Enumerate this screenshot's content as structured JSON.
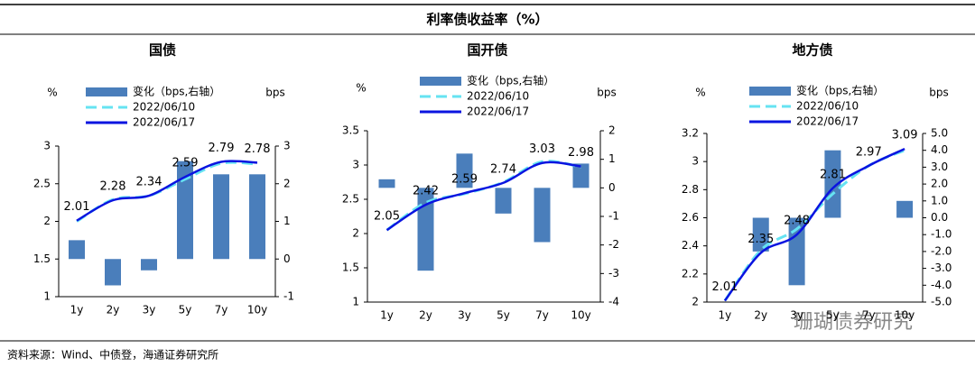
{
  "title": "利率债收益率（%）",
  "source": "资料来源：Wind、中债登，海通证券研究所",
  "watermark": "珊瑚债券研究",
  "chart_data": [
    {
      "type": "bar-line",
      "title": "国债",
      "y_label": "%",
      "y2_label": "bps",
      "categories": [
        "1y",
        "2y",
        "3y",
        "5y",
        "7y",
        "10y"
      ],
      "ylim": [
        1,
        3
      ],
      "yticks": [
        1,
        1.5,
        2,
        2.5,
        3
      ],
      "y2lim": [
        -1,
        3
      ],
      "y2ticks": [
        -1,
        0,
        1,
        2,
        3
      ],
      "series": [
        {
          "name": "变化（bps,右轴）",
          "type": "bar",
          "axis": "y2",
          "color": "#4a7ebb",
          "values": [
            0.5,
            -0.7,
            -0.3,
            2.6,
            2.25,
            2.25
          ]
        },
        {
          "name": "2022/06/10",
          "type": "line",
          "dashed": true,
          "color": "#66e3f2",
          "values": [
            2.0,
            2.29,
            2.34,
            2.56,
            2.77,
            2.76
          ]
        },
        {
          "name": "2022/06/17",
          "type": "line",
          "labels": true,
          "color": "#0a14e0",
          "values": [
            2.01,
            2.28,
            2.34,
            2.59,
            2.79,
            2.78
          ]
        }
      ]
    },
    {
      "type": "bar-line",
      "title": "国开债",
      "y_label": "%",
      "y2_label": "bps",
      "categories": [
        "1y",
        "2y",
        "3y",
        "5y",
        "7y",
        "10y"
      ],
      "ylim": [
        1,
        3.5
      ],
      "yticks": [
        1,
        1.5,
        2,
        2.5,
        3,
        3.5
      ],
      "y2lim": [
        -4,
        2
      ],
      "y2ticks": [
        -4,
        -3,
        -2,
        -1,
        0,
        1,
        2
      ],
      "series": [
        {
          "name": "变化（bps,右轴）",
          "type": "bar",
          "axis": "y2",
          "color": "#4a7ebb",
          "values": [
            0.3,
            -2.9,
            1.2,
            -0.9,
            -1.9,
            0.85
          ]
        },
        {
          "name": "2022/06/10",
          "type": "line",
          "dashed": true,
          "color": "#66e3f2",
          "values": [
            2.05,
            2.45,
            2.58,
            2.75,
            3.05,
            2.97
          ]
        },
        {
          "name": "2022/06/17",
          "type": "line",
          "labels": true,
          "color": "#0a14e0",
          "values": [
            2.05,
            2.42,
            2.59,
            2.74,
            3.03,
            2.98
          ]
        }
      ]
    },
    {
      "type": "bar-line",
      "title": "地方债",
      "y_label": "%",
      "y2_label": "bps",
      "categories": [
        "1y",
        "2y",
        "3y",
        "5y",
        "7y",
        "10y"
      ],
      "ylim": [
        2,
        3.2
      ],
      "yticks": [
        2,
        2.2,
        2.4,
        2.6,
        2.8,
        3,
        3.2
      ],
      "y2lim": [
        -5,
        5
      ],
      "y2ticks": [
        {
          "value": -5,
          "label": "-5.0"
        },
        {
          "value": -4,
          "label": "-4.0"
        },
        {
          "value": -3,
          "label": "-3.0"
        },
        {
          "value": -2,
          "label": "-2.0"
        },
        {
          "value": -1,
          "label": "-1.0"
        },
        {
          "value": 0,
          "label": "0.0"
        },
        {
          "value": 1,
          "label": "1.0"
        },
        {
          "value": 2,
          "label": "2.0"
        },
        {
          "value": 3,
          "label": "3.0"
        },
        {
          "value": 4,
          "label": "4.0"
        },
        {
          "value": 5,
          "label": "5.0"
        }
      ],
      "series": [
        {
          "name": "变化（bps,右轴）",
          "type": "bar",
          "axis": "y2",
          "color": "#4a7ebb",
          "values": [
            0,
            -2.0,
            -4.0,
            4.0,
            0,
            1.0
          ]
        },
        {
          "name": "2022/06/10",
          "type": "line",
          "dashed": true,
          "color": "#66e3f2",
          "values": [
            2.01,
            2.37,
            2.52,
            2.77,
            2.97,
            3.08
          ]
        },
        {
          "name": "2022/06/17",
          "type": "line",
          "labels": true,
          "color": "#0a14e0",
          "values": [
            2.01,
            2.35,
            2.48,
            2.81,
            2.97,
            3.09
          ]
        }
      ]
    }
  ]
}
